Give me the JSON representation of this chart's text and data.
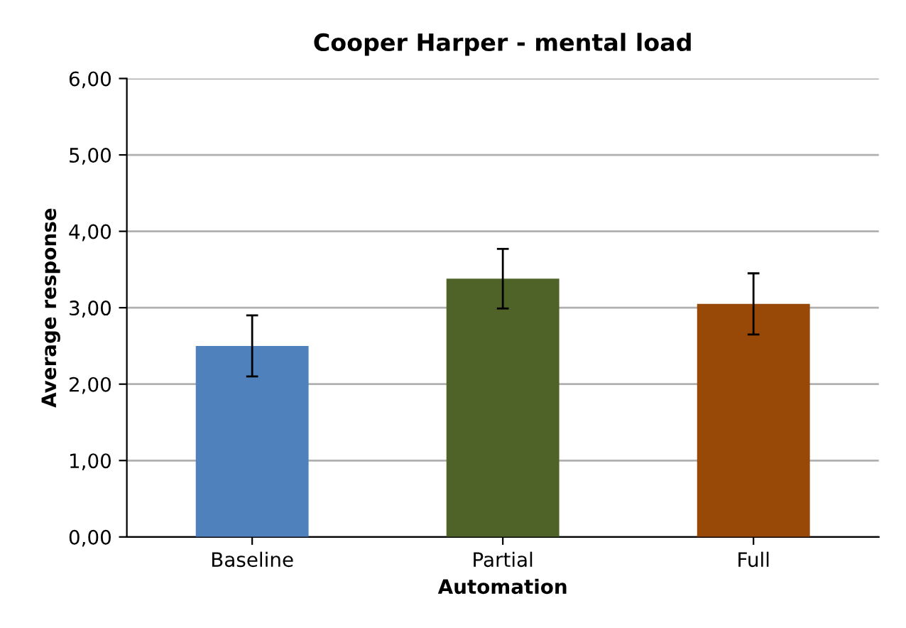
{
  "chart_data": {
    "type": "bar",
    "title": "Cooper Harper - mental load",
    "xlabel": "Automation",
    "ylabel": "Average response",
    "categories": [
      "Baseline",
      "Partial",
      "Full"
    ],
    "values": [
      2.5,
      3.38,
      3.05
    ],
    "colors": [
      "#4f81bd",
      "#4f6228",
      "#984807"
    ],
    "errors": [
      0.4,
      0.39,
      0.4
    ],
    "ylim": [
      0,
      6
    ],
    "yticks": [
      {
        "value": 0,
        "label": "0,00"
      },
      {
        "value": 1,
        "label": "1,00"
      },
      {
        "value": 2,
        "label": "2,00"
      },
      {
        "value": 3,
        "label": "3,00"
      },
      {
        "value": 4,
        "label": "4,00"
      },
      {
        "value": 5,
        "label": "5,00"
      },
      {
        "value": 6,
        "label": "6,00"
      }
    ],
    "grid": "y",
    "legend": false
  }
}
